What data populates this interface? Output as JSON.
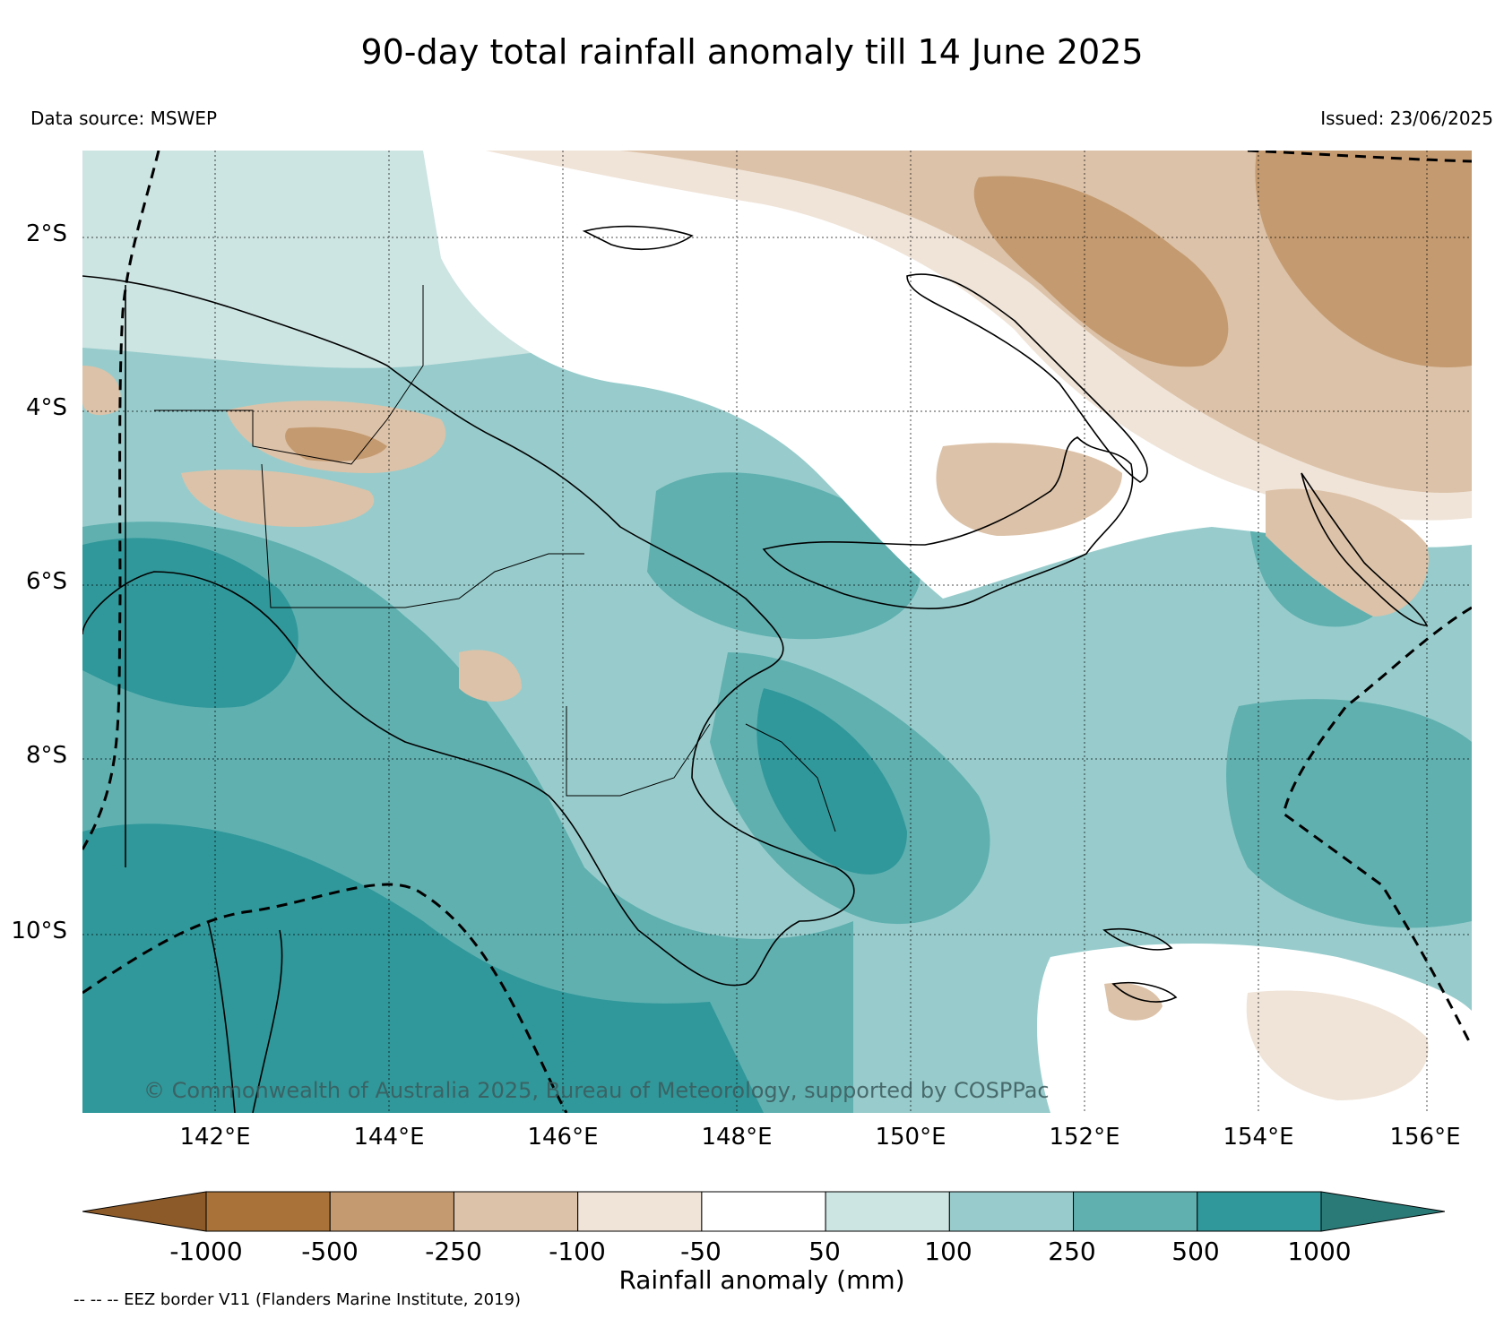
{
  "title": "90-day total rainfall anomaly till 14 June 2025",
  "data_source": "Data source: MSWEP",
  "issued": "Issued: 23/06/2025",
  "latitude_ticks": [
    "2°S",
    "4°S",
    "6°S",
    "8°S",
    "10°S"
  ],
  "longitude_ticks": [
    "142°E",
    "144°E",
    "146°E",
    "148°E",
    "150°E",
    "152°E",
    "154°E",
    "156°E"
  ],
  "copyright": "© Commonwealth of Australia 2025, Bureau of Meteorology, supported by COSPPac",
  "colorbar": {
    "label": "Rainfall anomaly (mm)",
    "ticks": [
      "-1000",
      "-500",
      "-250",
      "-100",
      "-50",
      "50",
      "100",
      "250",
      "500",
      "1000"
    ],
    "colors": [
      "#8c5a28",
      "#a87238",
      "#c49a70",
      "#dcc2a8",
      "#f0e4d8",
      "#ffffff",
      "#cce4e2",
      "#98cccc",
      "#60b0b0",
      "#30989a",
      "#2a7a78"
    ]
  },
  "eez_note": "-- -- -- EEZ border V11 (Flanders Marine Institute, 2019)"
}
